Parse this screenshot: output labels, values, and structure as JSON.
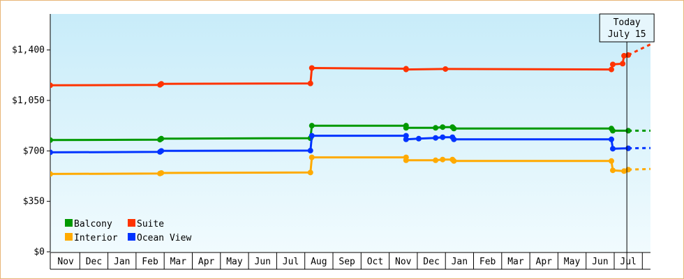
{
  "chart_data": {
    "type": "line",
    "step": true,
    "y_ticks": [
      {
        "value": 0,
        "label": "$0"
      },
      {
        "value": 350,
        "label": "$350"
      },
      {
        "value": 700,
        "label": "$700"
      },
      {
        "value": 1050,
        "label": "$1,050"
      },
      {
        "value": 1400,
        "label": "$1,400"
      }
    ],
    "ylim": [
      0,
      1650
    ],
    "x_ticks": [
      "Nov",
      "Dec",
      "Jan",
      "Feb",
      "Mar",
      "Apr",
      "May",
      "Jun",
      "Jul",
      "Aug",
      "Sep",
      "Oct",
      "Nov",
      "Dec",
      "Jan",
      "Feb",
      "Mar",
      "Apr",
      "May",
      "Jun",
      "Jul"
    ],
    "xlim": [
      0,
      21.35
    ],
    "today": {
      "line1": "Today",
      "line2": "July 15",
      "x": 20.45
    },
    "legend": {
      "placement": "bottom-left"
    },
    "series": [
      {
        "name": "Balcony",
        "color": "#009900",
        "points": [
          [
            -0.05,
            775
          ],
          [
            3.85,
            778
          ],
          [
            3.9,
            785
          ],
          [
            9.2,
            788
          ],
          [
            9.25,
            875
          ],
          [
            12.6,
            875
          ],
          [
            12.6,
            860
          ],
          [
            13.65,
            860
          ],
          [
            13.9,
            865
          ],
          [
            14.25,
            865
          ],
          [
            14.3,
            855
          ],
          [
            19.9,
            855
          ],
          [
            19.95,
            840
          ],
          [
            20.5,
            840
          ]
        ],
        "projection": [
          [
            20.5,
            840
          ],
          [
            21.35,
            840
          ]
        ]
      },
      {
        "name": "Suite",
        "color": "#ff3300",
        "points": [
          [
            -0.05,
            1155
          ],
          [
            3.85,
            1158
          ],
          [
            3.9,
            1165
          ],
          [
            9.2,
            1168
          ],
          [
            9.25,
            1275
          ],
          [
            12.6,
            1270
          ],
          [
            12.6,
            1265
          ],
          [
            14,
            1268
          ],
          [
            19.9,
            1265
          ],
          [
            19.95,
            1300
          ],
          [
            20.3,
            1305
          ],
          [
            20.35,
            1360
          ],
          [
            20.5,
            1365
          ]
        ],
        "projection": [
          [
            20.5,
            1365
          ],
          [
            21.35,
            1445
          ]
        ]
      },
      {
        "name": "Interior",
        "color": "#ffaa00",
        "points": [
          [
            -0.05,
            540
          ],
          [
            3.85,
            543
          ],
          [
            3.9,
            547
          ],
          [
            9.2,
            550
          ],
          [
            9.25,
            655
          ],
          [
            12.6,
            655
          ],
          [
            12.6,
            635
          ],
          [
            13.65,
            635
          ],
          [
            13.9,
            640
          ],
          [
            14.25,
            640
          ],
          [
            14.3,
            630
          ],
          [
            19.9,
            630
          ],
          [
            19.95,
            565
          ],
          [
            20.35,
            560
          ],
          [
            20.5,
            570
          ]
        ],
        "projection": [
          [
            20.5,
            570
          ],
          [
            21.35,
            575
          ]
        ]
      },
      {
        "name": "Ocean View",
        "color": "#0033ff",
        "points": [
          [
            -0.05,
            690
          ],
          [
            3.85,
            693
          ],
          [
            3.9,
            700
          ],
          [
            9.2,
            702
          ],
          [
            9.25,
            805
          ],
          [
            12.6,
            805
          ],
          [
            12.6,
            780
          ],
          [
            13.05,
            785
          ],
          [
            13.65,
            790
          ],
          [
            13.9,
            795
          ],
          [
            14.25,
            795
          ],
          [
            14.3,
            780
          ],
          [
            19.9,
            780
          ],
          [
            19.95,
            715
          ],
          [
            20.5,
            718
          ]
        ],
        "projection": [
          [
            20.5,
            718
          ],
          [
            21.35,
            720
          ]
        ]
      }
    ]
  }
}
